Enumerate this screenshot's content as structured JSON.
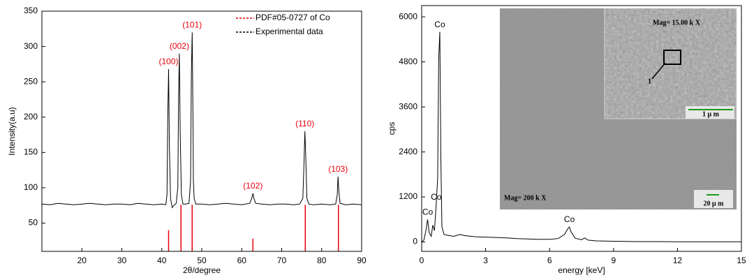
{
  "chart_data": [
    {
      "type": "line",
      "xlabel": "2θ/degree",
      "ylabel": "Intensity(a.u)",
      "xlim": [
        10,
        90
      ],
      "xticks": [
        20,
        30,
        40,
        50,
        60,
        70,
        80,
        90
      ],
      "ylim": [
        10,
        350
      ],
      "yticks": [
        50,
        100,
        150,
        200,
        250,
        300,
        350
      ],
      "legend": "upper right",
      "series": [
        {
          "name": "PDF#05-0727 of  Co",
          "color": "#e8000b",
          "style": "stick",
          "x": [
            41.7,
            44.8,
            47.6,
            62.8,
            75.9,
            84.2
          ],
          "values": [
            40,
            76,
            76,
            28,
            76,
            76
          ]
        },
        {
          "name": "Experimental data",
          "color": "#000000",
          "style": "line",
          "x": [
            10,
            12,
            14,
            16,
            18,
            20,
            22,
            24,
            26,
            28,
            30,
            32,
            34,
            36,
            38,
            40,
            41,
            41.3,
            41.5,
            41.7,
            41.9,
            42.2,
            42.6,
            43,
            43.6,
            44,
            44.2,
            44.4,
            44.6,
            44.9,
            45.3,
            46,
            46.8,
            47.2,
            47.4,
            47.6,
            47.8,
            47.9,
            48.1,
            48.5,
            50,
            52,
            54,
            56,
            58,
            60,
            62,
            62.5,
            62.8,
            63.1,
            63.5,
            65,
            67,
            69,
            71,
            73,
            74.5,
            75.3,
            75.6,
            75.8,
            76,
            76.3,
            76.8,
            78,
            80,
            82,
            83.5,
            83.9,
            84.1,
            84.3,
            84.6,
            86,
            88,
            90
          ],
          "values": [
            77,
            76,
            78,
            77,
            76,
            77,
            78,
            77,
            76,
            77,
            77,
            76,
            78,
            77,
            76,
            77,
            76,
            90,
            200,
            268,
            160,
            85,
            72,
            75,
            78,
            100,
            230,
            290,
            180,
            90,
            77,
            77,
            78,
            110,
            260,
            320,
            200,
            110,
            85,
            77,
            77,
            76,
            77,
            78,
            77,
            76,
            78,
            85,
            92,
            84,
            78,
            77,
            76,
            77,
            77,
            76,
            77,
            85,
            140,
            180,
            150,
            85,
            77,
            76,
            77,
            76,
            77,
            90,
            116,
            95,
            78,
            76,
            77,
            76
          ]
        }
      ],
      "annotations": [
        {
          "text": "(100)",
          "x": 41.7,
          "y": 268
        },
        {
          "text": "(002)",
          "x": 44.4,
          "y": 290
        },
        {
          "text": "(101)",
          "x": 47.6,
          "y": 320
        },
        {
          "text": "(102)",
          "x": 62.8,
          "y": 92
        },
        {
          "text": "(110)",
          "x": 75.8,
          "y": 180
        },
        {
          "text": "(103)",
          "x": 84.1,
          "y": 116
        }
      ]
    },
    {
      "type": "line",
      "xlabel": "energy [keV]",
      "ylabel": "cps",
      "xlim": [
        0,
        15
      ],
      "xticks": [
        0,
        3,
        6,
        9,
        12,
        15
      ],
      "ylim": [
        -250,
        6300
      ],
      "yticks": [
        0,
        1200,
        2400,
        3600,
        4800,
        6000
      ],
      "series": [
        {
          "color": "#000000",
          "style": "line",
          "x": [
            0,
            0.1,
            0.2,
            0.28,
            0.35,
            0.45,
            0.52,
            0.6,
            0.68,
            0.75,
            0.8,
            0.85,
            0.9,
            0.95,
            1.05,
            1.2,
            1.5,
            1.8,
            2,
            2.5,
            3,
            3.5,
            4,
            4.5,
            5,
            5.5,
            6,
            6.4,
            6.7,
            6.85,
            6.93,
            7.0,
            7.2,
            7.5,
            7.65,
            7.8,
            8.2,
            9,
            10,
            11,
            12,
            13,
            14,
            15
          ],
          "values": [
            0,
            50,
            300,
            600,
            250,
            150,
            450,
            300,
            1000,
            1700,
            4900,
            5600,
            2200,
            400,
            200,
            180,
            150,
            200,
            170,
            140,
            130,
            120,
            110,
            90,
            80,
            70,
            70,
            90,
            200,
            350,
            400,
            280,
            100,
            60,
            110,
            50,
            30,
            20,
            10,
            10,
            5,
            5,
            5,
            5
          ]
        }
      ],
      "annotations": [
        {
          "text": "Co",
          "x": 0.28,
          "y": 600
        },
        {
          "text": "Co",
          "x": 0.68,
          "y": 1000
        },
        {
          "text": "Co",
          "x": 0.85,
          "y": 5600
        },
        {
          "text": "Co",
          "x": 6.93,
          "y": 400
        }
      ],
      "inset": {
        "main_label": "Mag=  200 k  X",
        "main_scale": "20 μ m",
        "zoom_label": "Mag= 15.00 k  X",
        "zoom_scale": "1 μ m",
        "marker": "1"
      }
    }
  ]
}
